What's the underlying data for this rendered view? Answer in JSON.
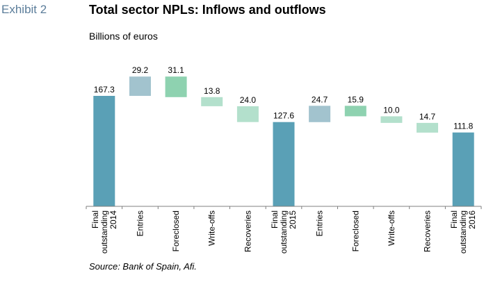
{
  "header": {
    "exhibit": "Exhibit 2",
    "title": "Total sector NPLs: Inflows and outflows",
    "subtitle": "Billions of euros"
  },
  "footer": {
    "source": "Source: Bank of Spain, Afi."
  },
  "colors": {
    "stock": "#5aa0b6",
    "entries": "#a2c3ce",
    "foreclosed": "#8ed2b0",
    "outflow": "#b3e0cc",
    "axis": "#7f7f7f"
  },
  "chart_data": {
    "type": "bar",
    "subtype": "waterfall",
    "title": "Total sector NPLs: Inflows and outflows",
    "ylabel": "Billions of euros",
    "ylim": [
      0,
      200
    ],
    "grid": false,
    "legend": "none",
    "categories": [
      [
        "Final",
        "outstanding",
        "2014"
      ],
      [
        "Entries"
      ],
      [
        "Foreclosed"
      ],
      [
        "Write-offs"
      ],
      [
        "Recoveries"
      ],
      [
        "Final",
        "outstanding",
        "2015"
      ],
      [
        "Entries"
      ],
      [
        "Foreclosed"
      ],
      [
        "Write-offs"
      ],
      [
        "Recoveries"
      ],
      [
        "Final",
        "outstanding",
        "2016"
      ]
    ],
    "steps": [
      {
        "kind": "stock",
        "value": 167.3,
        "label": "167.3"
      },
      {
        "kind": "entries",
        "value": 29.2,
        "label": "29.2"
      },
      {
        "kind": "foreclosed",
        "value": -31.1,
        "label": "31.1"
      },
      {
        "kind": "outflow",
        "value": -13.8,
        "label": "13.8"
      },
      {
        "kind": "outflow",
        "value": -24.0,
        "label": "24.0"
      },
      {
        "kind": "stock",
        "value": 127.6,
        "label": "127.6"
      },
      {
        "kind": "entries",
        "value": 24.7,
        "label": "24.7"
      },
      {
        "kind": "foreclosed",
        "value": -15.9,
        "label": "15.9"
      },
      {
        "kind": "outflow",
        "value": -10.0,
        "label": "10.0"
      },
      {
        "kind": "outflow",
        "value": -14.7,
        "label": "14.7"
      },
      {
        "kind": "stock",
        "value": 111.8,
        "label": "111.8"
      }
    ]
  }
}
